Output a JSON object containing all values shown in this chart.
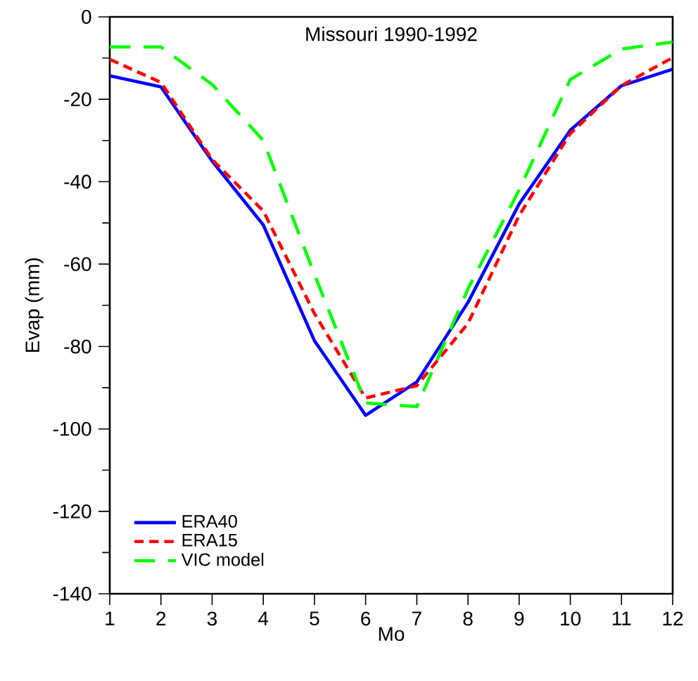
{
  "chart_data": {
    "type": "line",
    "title": "Missouri  1990-1992",
    "xlabel": "Mo",
    "ylabel": "Evap (mm)",
    "x": [
      1,
      2,
      3,
      4,
      5,
      6,
      7,
      8,
      9,
      10,
      11,
      12
    ],
    "xlim": [
      1,
      12
    ],
    "xticks": [
      1,
      2,
      3,
      4,
      5,
      6,
      7,
      8,
      9,
      10,
      11,
      12
    ],
    "ylim": [
      -140,
      0
    ],
    "yticks": [
      -140,
      -120,
      -100,
      -80,
      -60,
      -40,
      -20,
      0
    ],
    "legend": "bottom left",
    "grid": false,
    "marker": "none",
    "series": [
      {
        "name": "ERA40",
        "color": "#0000ff",
        "line_style": "solid",
        "values": [
          -14.3,
          -17,
          -35,
          -50.5,
          -78.6,
          -96.7,
          -88.6,
          -69.3,
          -45.4,
          -27.5,
          -16.7,
          -12.7
        ]
      },
      {
        "name": "ERA15",
        "color": "#ff0000",
        "line_style": "dashed",
        "values": [
          -10.3,
          -15.9,
          -34.6,
          -47.1,
          -72,
          -92.5,
          -89.5,
          -74.4,
          -48.2,
          -28.3,
          -16.7,
          -9.9
        ]
      },
      {
        "name": "VIC model",
        "color": "#00ff00",
        "line_style": "dashed",
        "values": [
          -7.3,
          -7.3,
          -16.4,
          -30,
          -62.5,
          -93.7,
          -94.6,
          -66,
          -42,
          -15.2,
          -7.8,
          -6.1
        ]
      }
    ]
  }
}
